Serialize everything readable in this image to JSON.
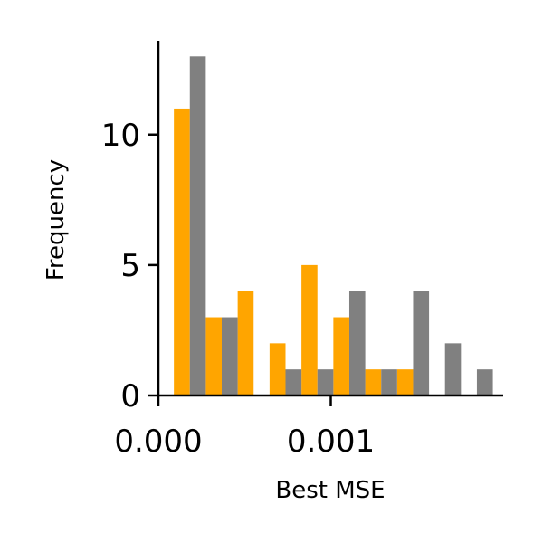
{
  "chart_data": {
    "type": "bar",
    "xlabel": "Best MSE",
    "ylabel": "Frequency",
    "x_ticks": [
      {
        "value": 0.0,
        "label": "0.000"
      },
      {
        "value": 0.001,
        "label": "0.001"
      }
    ],
    "y_ticks": [
      {
        "value": 0,
        "label": "0"
      },
      {
        "value": 5,
        "label": "5"
      },
      {
        "value": 10,
        "label": "10"
      }
    ],
    "xlim": [
      0.0,
      0.002
    ],
    "ylim": [
      0,
      13.6
    ],
    "bin_edges": [
      9e-05,
      0.000275,
      0.00046,
      0.000645,
      0.00083,
      0.001015,
      0.0012,
      0.001385,
      0.00157,
      0.001755,
      0.00194
    ],
    "series": [
      {
        "color": "#FFA500",
        "values": [
          11,
          3,
          4,
          2,
          5,
          3,
          1,
          1,
          0,
          0
        ]
      },
      {
        "color": "#808080",
        "values": [
          13,
          3,
          0,
          1,
          1,
          4,
          1,
          4,
          2,
          1
        ]
      }
    ],
    "grid": false,
    "spines": [
      "left",
      "bottom"
    ]
  }
}
